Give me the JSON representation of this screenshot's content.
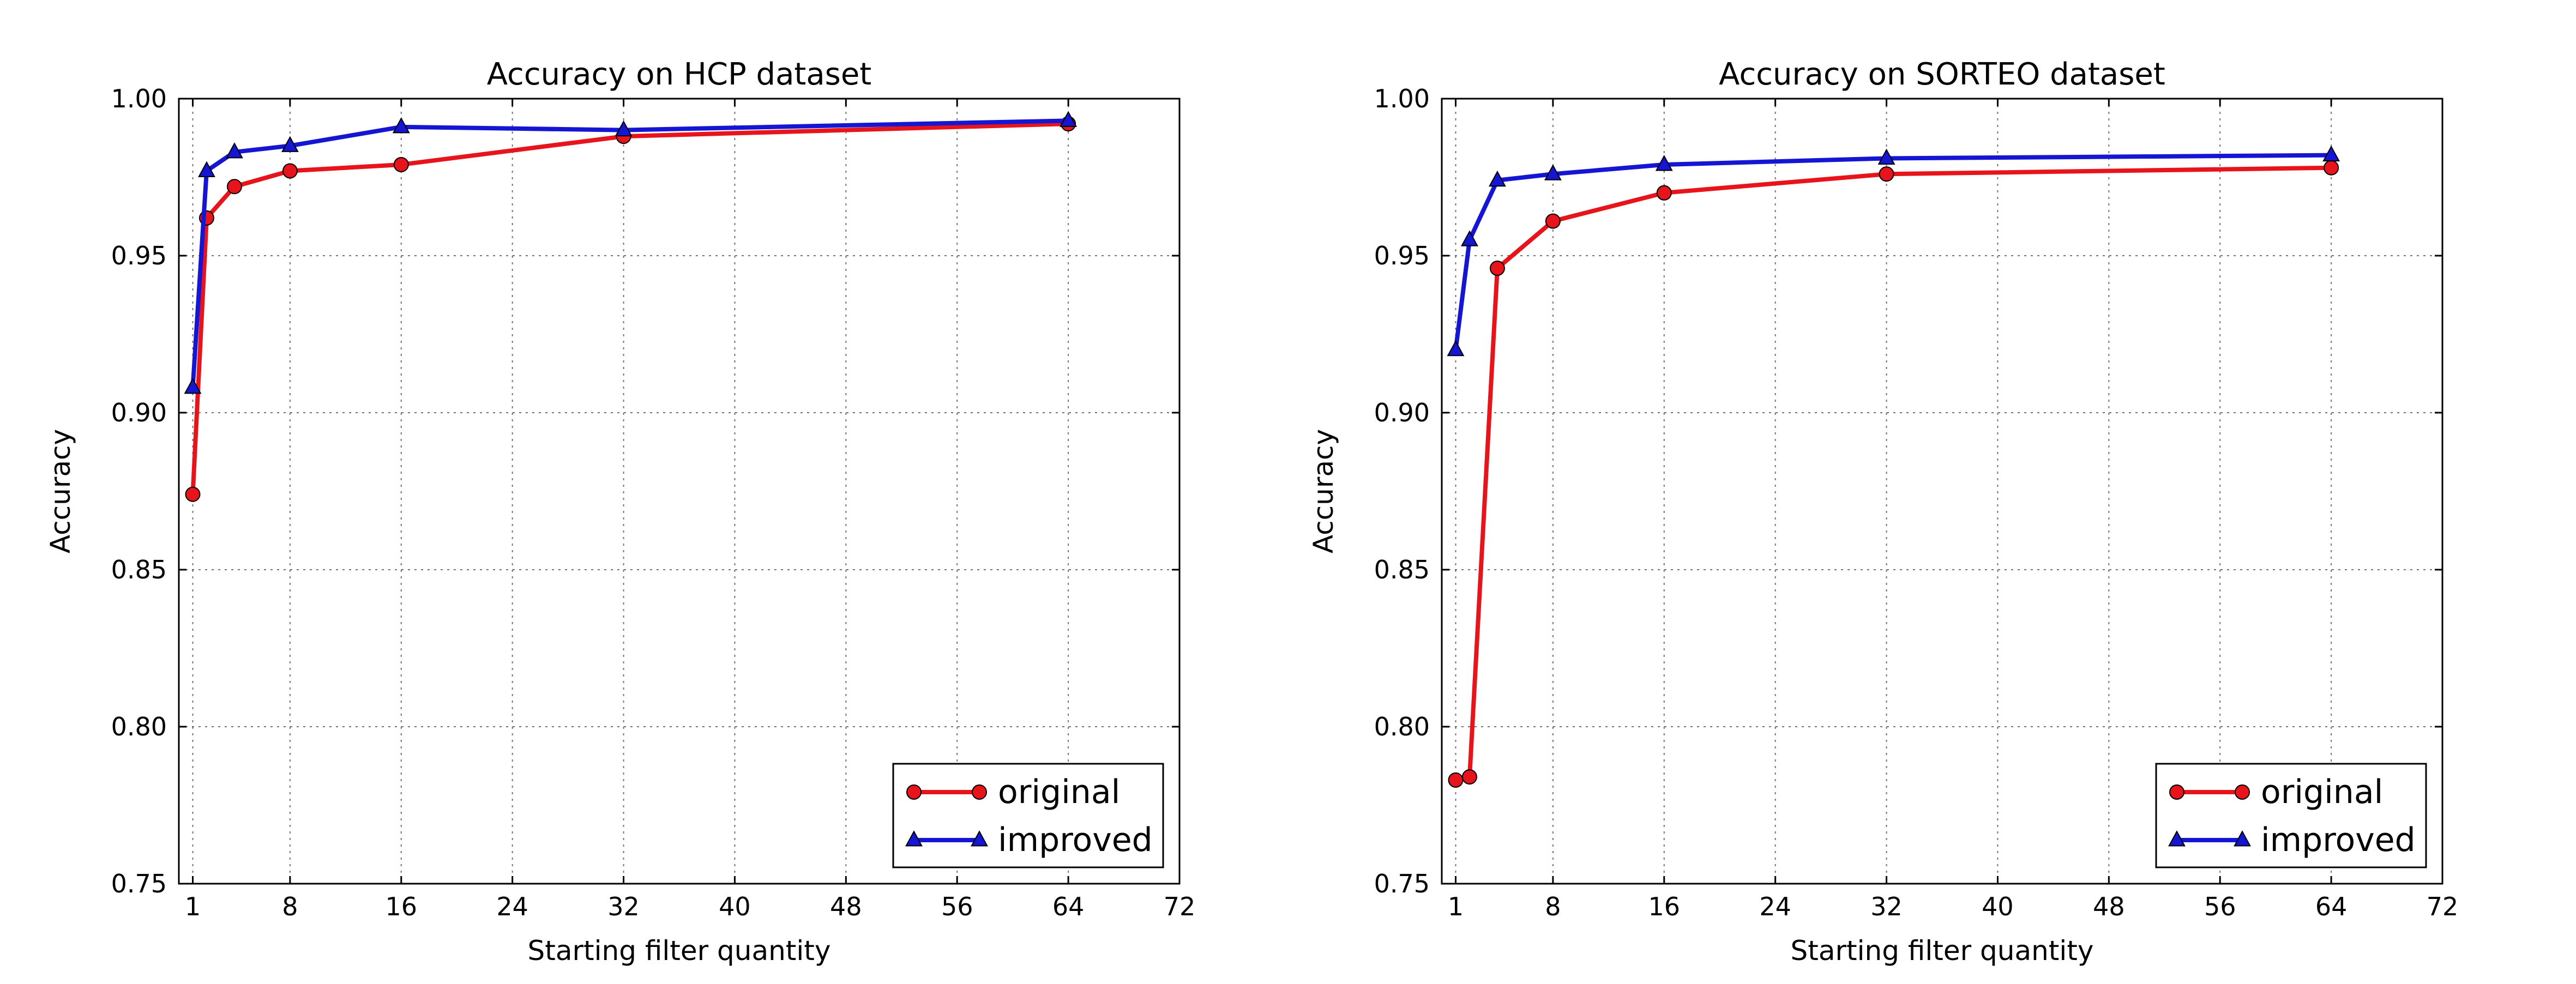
{
  "chart_data": [
    {
      "type": "line",
      "title": "Accuracy on HCP dataset",
      "xlabel": "Starting filter quantity",
      "ylabel": "Accuracy",
      "xlim": [
        0,
        72
      ],
      "ylim": [
        0.75,
        1.0
      ],
      "xticks": [
        1,
        8,
        16,
        24,
        32,
        40,
        48,
        56,
        64,
        72
      ],
      "yticks": [
        0.75,
        0.8,
        0.85,
        0.9,
        0.95,
        1.0
      ],
      "xtick_labels": [
        "1",
        "8",
        "16",
        "24",
        "32",
        "40",
        "48",
        "56",
        "64",
        "72"
      ],
      "ytick_labels": [
        "0.75",
        "0.80",
        "0.85",
        "0.90",
        "0.95",
        "1.00"
      ],
      "grid": true,
      "legend_position": "lower-right",
      "series": [
        {
          "name": "original",
          "color": "#e8141c",
          "marker": "circle",
          "x": [
            1,
            2,
            4,
            8,
            16,
            32,
            64
          ],
          "y": [
            0.874,
            0.962,
            0.972,
            0.977,
            0.979,
            0.988,
            0.992
          ]
        },
        {
          "name": "improved",
          "color": "#1515d4",
          "marker": "triangle",
          "x": [
            1,
            2,
            4,
            8,
            16,
            32,
            64
          ],
          "y": [
            0.908,
            0.977,
            0.983,
            0.985,
            0.991,
            0.99,
            0.993
          ]
        }
      ]
    },
    {
      "type": "line",
      "title": "Accuracy on SORTEO dataset",
      "xlabel": "Starting filter quantity",
      "ylabel": "Accuracy",
      "xlim": [
        0,
        72
      ],
      "ylim": [
        0.75,
        1.0
      ],
      "xticks": [
        1,
        8,
        16,
        24,
        32,
        40,
        48,
        56,
        64,
        72
      ],
      "yticks": [
        0.75,
        0.8,
        0.85,
        0.9,
        0.95,
        1.0
      ],
      "xtick_labels": [
        "1",
        "8",
        "16",
        "24",
        "32",
        "40",
        "48",
        "56",
        "64",
        "72"
      ],
      "ytick_labels": [
        "0.75",
        "0.80",
        "0.85",
        "0.90",
        "0.95",
        "1.00"
      ],
      "grid": true,
      "legend_position": "lower-right",
      "series": [
        {
          "name": "original",
          "color": "#e8141c",
          "marker": "circle",
          "x": [
            1,
            2,
            4,
            8,
            16,
            32,
            64
          ],
          "y": [
            0.783,
            0.784,
            0.946,
            0.961,
            0.97,
            0.976,
            0.978
          ]
        },
        {
          "name": "improved",
          "color": "#1515d4",
          "marker": "triangle",
          "x": [
            1,
            2,
            4,
            8,
            16,
            32,
            64
          ],
          "y": [
            0.92,
            0.955,
            0.974,
            0.976,
            0.979,
            0.981,
            0.982
          ]
        }
      ]
    }
  ]
}
